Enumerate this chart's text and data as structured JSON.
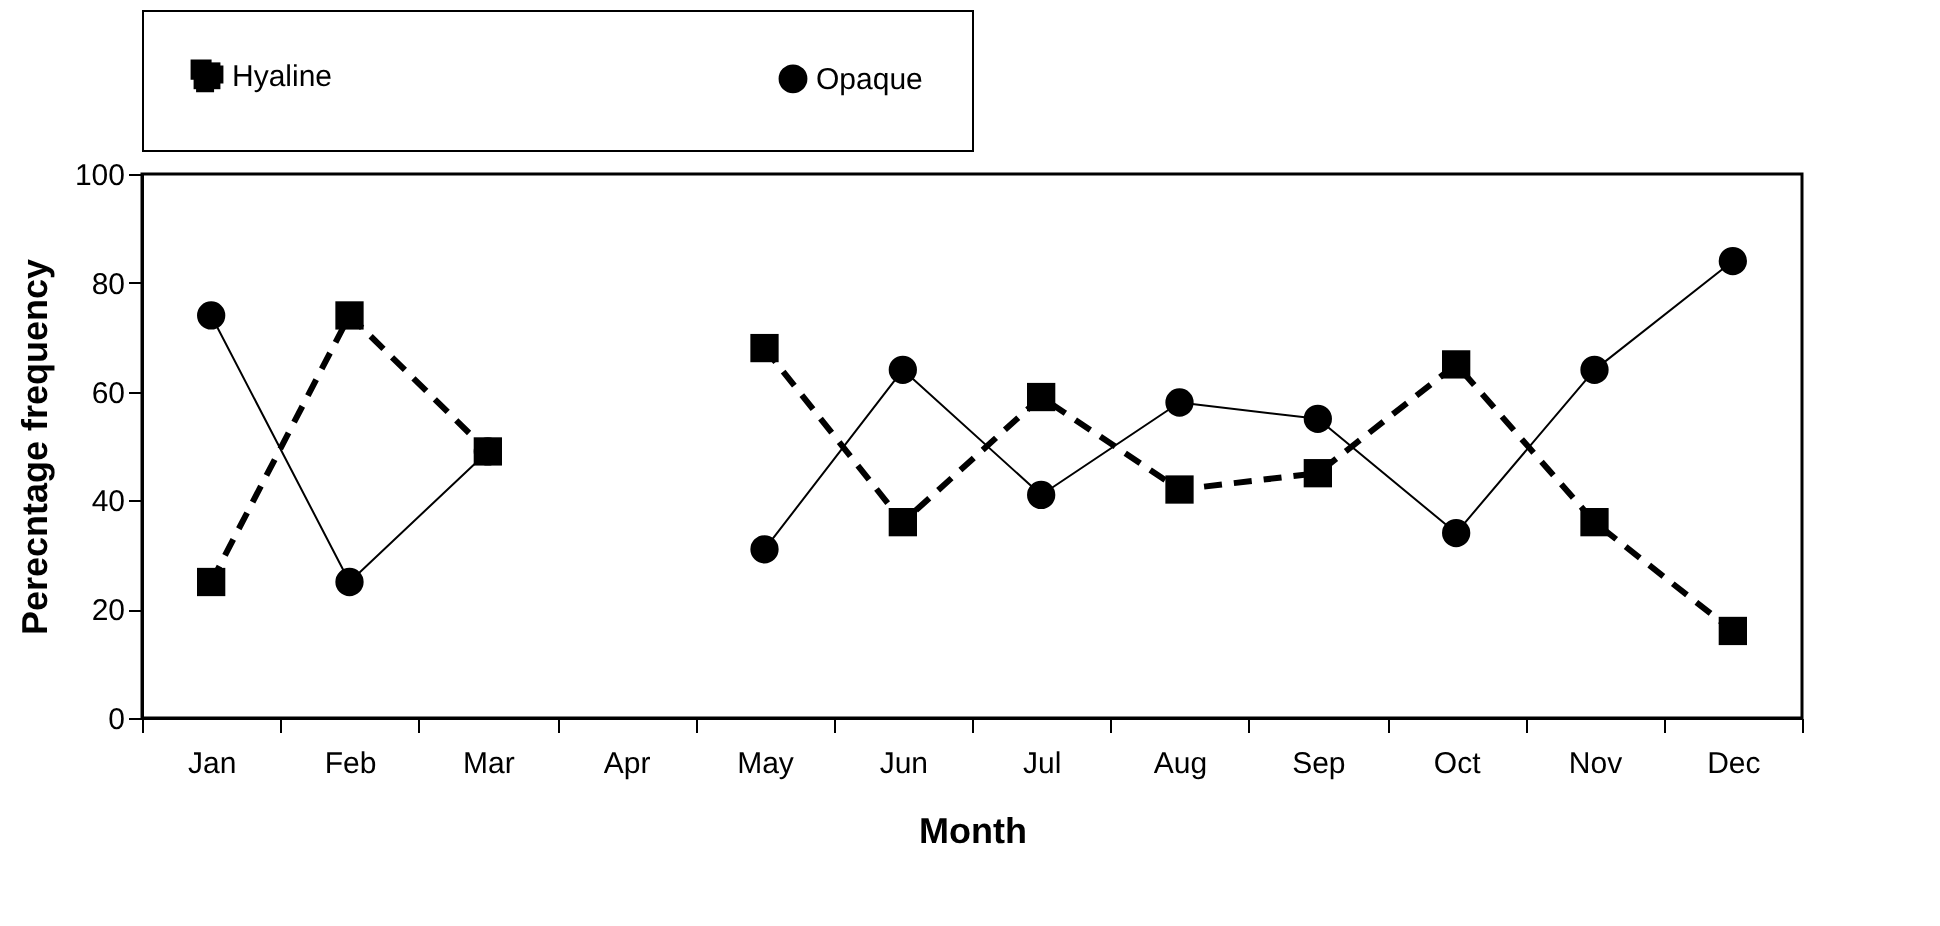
{
  "chart_data": {
    "type": "line",
    "xlabel": "Month",
    "ylabel": "Perecntage frequency",
    "categories": [
      "Jan",
      "Feb",
      "Mar",
      "Apr",
      "May",
      "Jun",
      "Jul",
      "Aug",
      "Sep",
      "Oct",
      "Nov",
      "Dec"
    ],
    "series": [
      {
        "name": "Hyaline",
        "color": "#000000",
        "marker": "square",
        "line_style": "dashed",
        "values": [
          25,
          74,
          49,
          null,
          68,
          36,
          59,
          42,
          45,
          65,
          36,
          16
        ]
      },
      {
        "name": "Opaque",
        "color": "#000000",
        "marker": "circle",
        "line_style": "solid",
        "values": [
          74,
          25,
          49,
          null,
          31,
          64,
          41,
          58,
          55,
          34,
          64,
          84
        ]
      }
    ],
    "ylim": [
      0,
      100
    ],
    "yticks": [
      0,
      20,
      40,
      60,
      80,
      100
    ],
    "grid": false,
    "legend": "top"
  }
}
